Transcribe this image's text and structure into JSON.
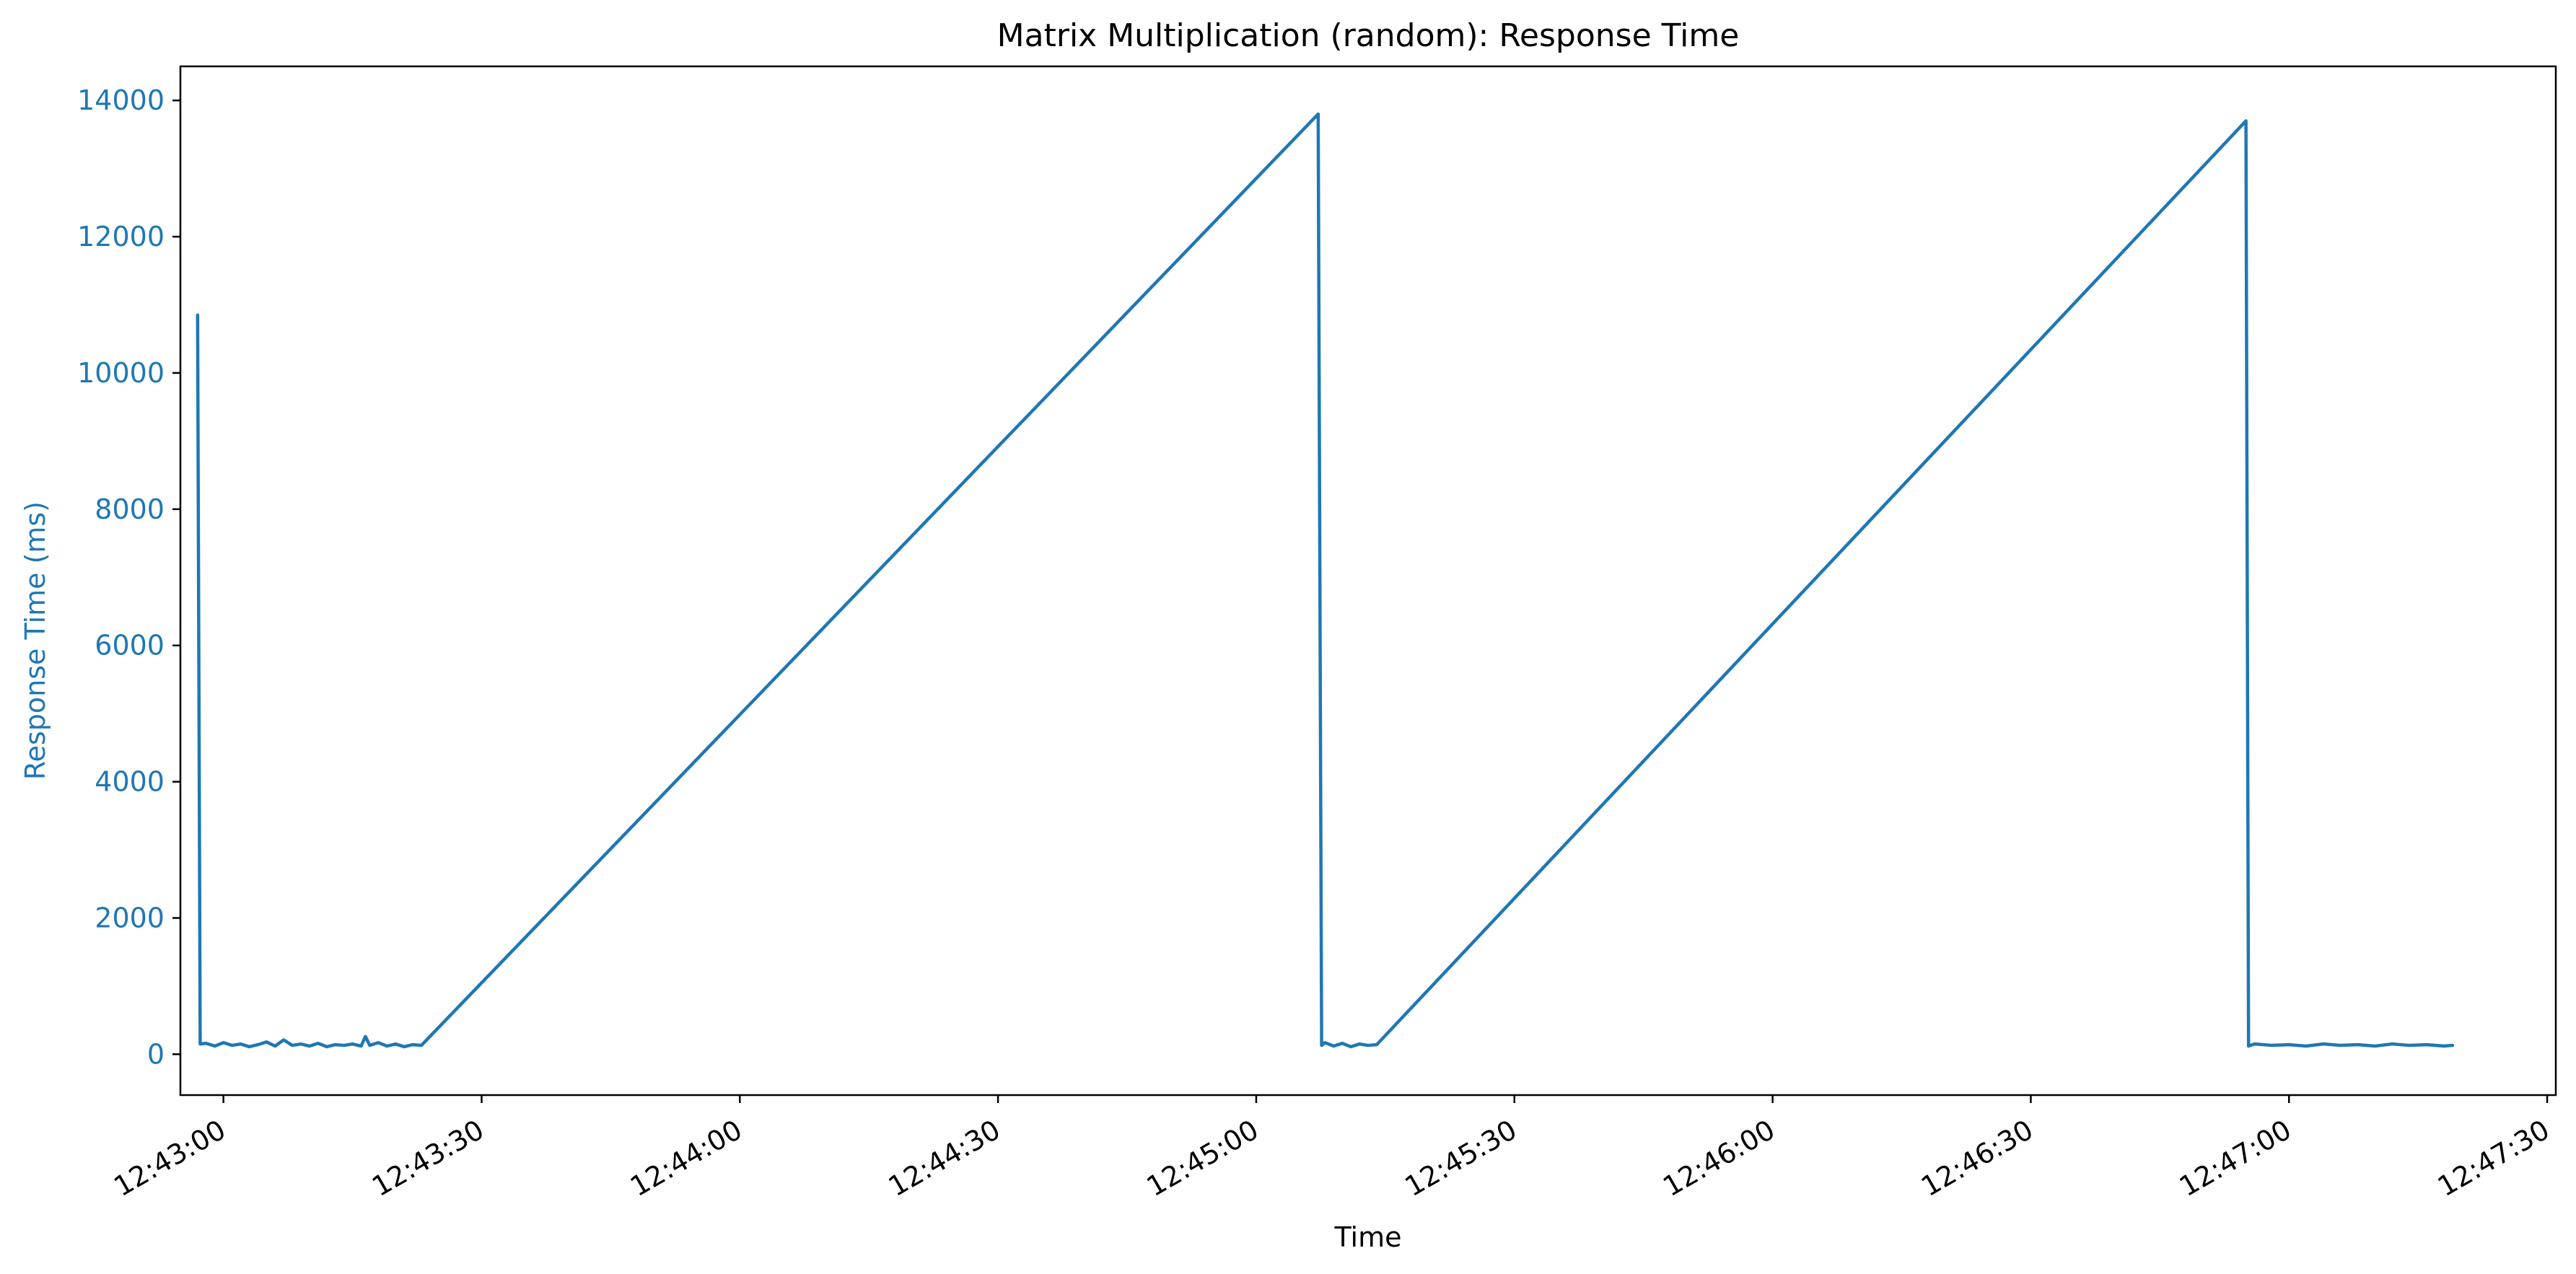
{
  "chart_data": {
    "type": "line",
    "title": "Matrix Multiplication (random): Response Time",
    "xlabel": "Time",
    "ylabel": "Response Time (ms)",
    "x_axis_type": "time",
    "xlim": [
      "12:42:55",
      "12:47:31"
    ],
    "ylim": [
      -600,
      14500
    ],
    "yticks": [
      0,
      2000,
      4000,
      6000,
      8000,
      10000,
      12000,
      14000
    ],
    "xticks": [
      "12:43:00",
      "12:43:30",
      "12:44:00",
      "12:44:30",
      "12:45:00",
      "12:45:30",
      "12:46:00",
      "12:46:30",
      "12:47:00",
      "12:47:30"
    ],
    "grid": false,
    "legend": "none",
    "colors": {
      "series": "#1f77b4",
      "axis": "#000000",
      "ylabel_color": "#1f77b4"
    },
    "series": [
      {
        "x": [
          "12:42:57.0",
          "12:42:57.3",
          "12:42:58",
          "12:42:59",
          "12:43:00",
          "12:43:01",
          "12:43:02",
          "12:43:03",
          "12:43:04",
          "12:43:05",
          "12:43:06",
          "12:43:07",
          "12:43:08",
          "12:43:09",
          "12:43:10",
          "12:43:11",
          "12:43:12",
          "12:43:13",
          "12:43:14",
          "12:43:15",
          "12:43:16",
          "12:43:16.5",
          "12:43:17",
          "12:43:18",
          "12:43:19",
          "12:43:20",
          "12:43:21",
          "12:43:22",
          "12:43:23",
          "12:45:07.2",
          "12:45:07.6",
          "12:45:08",
          "12:45:09",
          "12:45:10",
          "12:45:11",
          "12:45:12",
          "12:45:13",
          "12:45:14",
          "12:46:55",
          "12:46:55.3",
          "12:46:56",
          "12:46:58",
          "12:47:00",
          "12:47:02",
          "12:47:04",
          "12:47:06",
          "12:47:08",
          "12:47:10",
          "12:47:12",
          "12:47:14",
          "12:47:16",
          "12:47:18",
          "12:47:19"
        ],
        "y": [
          10850,
          150,
          160,
          120,
          170,
          130,
          150,
          110,
          140,
          180,
          120,
          210,
          130,
          150,
          120,
          160,
          110,
          140,
          130,
          150,
          120,
          260,
          130,
          170,
          120,
          150,
          110,
          140,
          130,
          13800,
          130,
          170,
          120,
          160,
          110,
          150,
          130,
          140,
          13700,
          120,
          150,
          130,
          140,
          120,
          150,
          130,
          140,
          120,
          150,
          130,
          140,
          120,
          130
        ]
      }
    ]
  }
}
